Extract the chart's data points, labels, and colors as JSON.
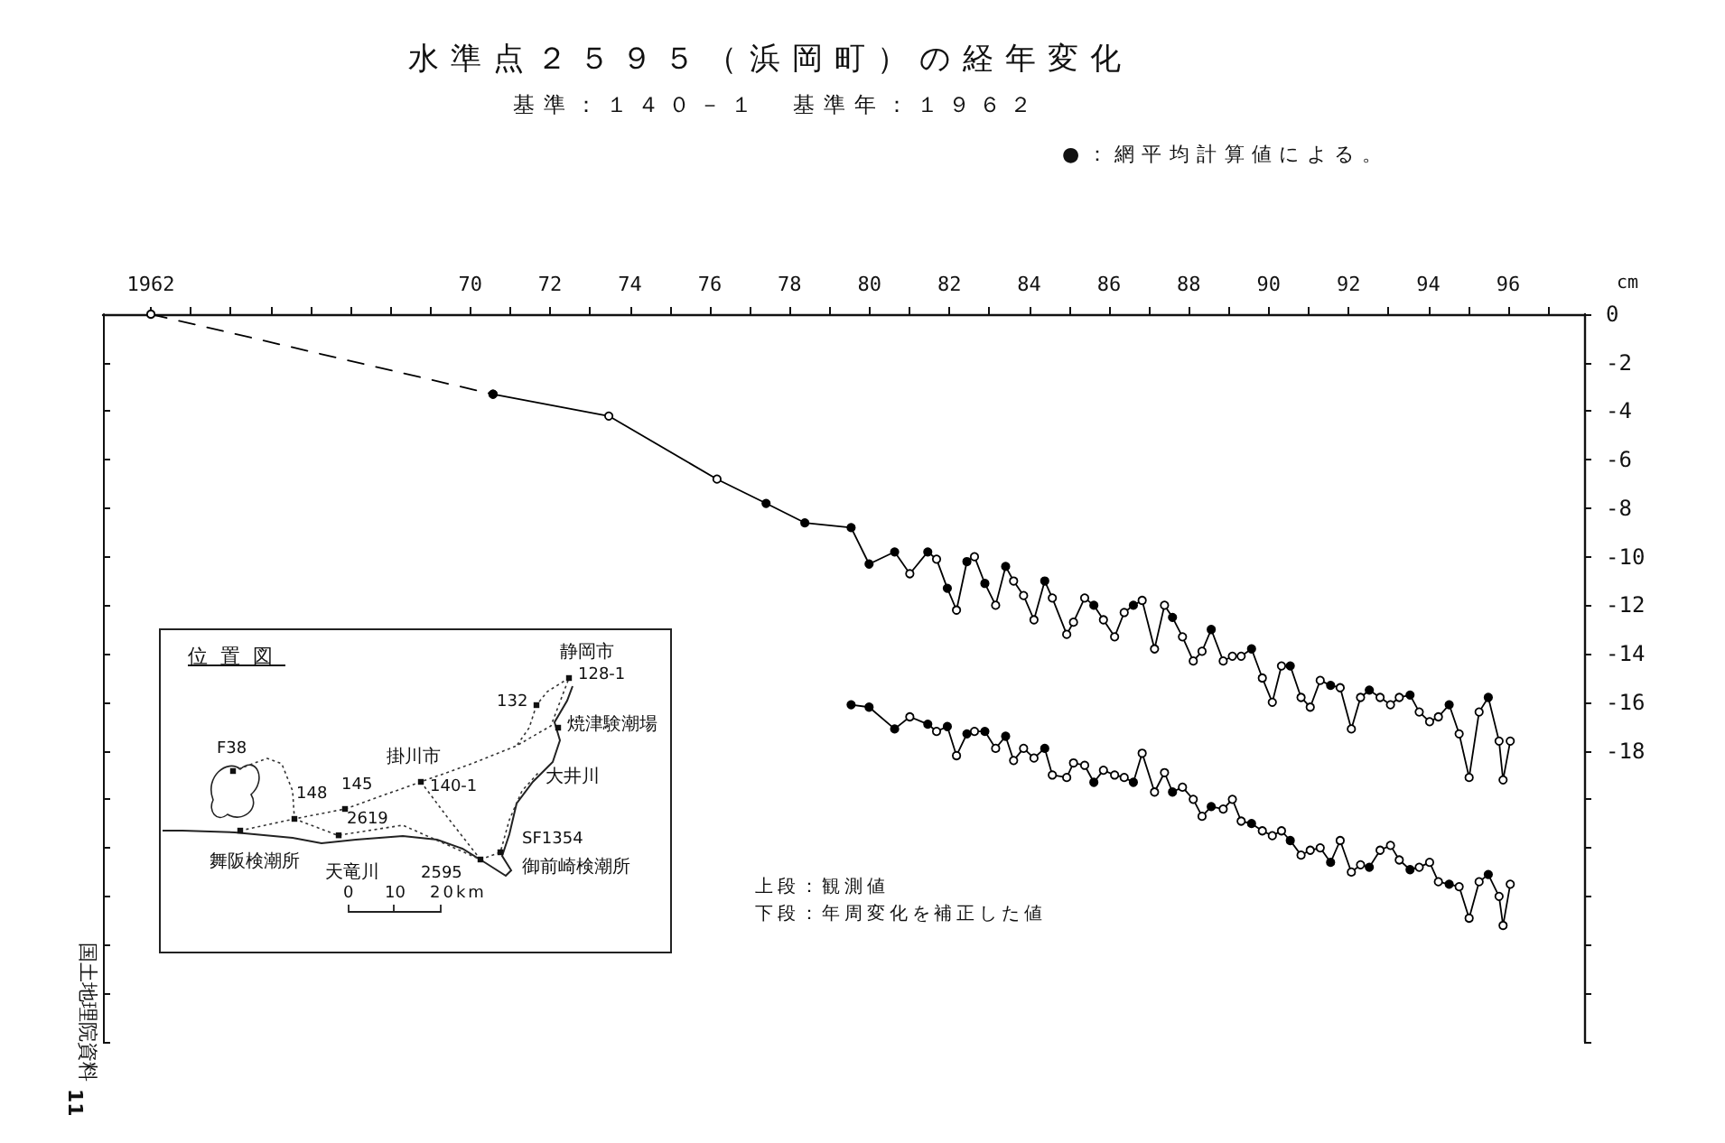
{
  "chart_data": {
    "type": "line",
    "title": "水準点２５９５（浜岡町）の経年変化",
    "subtitle": "基準：１４０－１　基準年：１９６２",
    "ylabel": "cm",
    "xlim": [
      1960.8,
      1997.9
    ],
    "xticks": [
      {
        "value": 1962,
        "label": "1962"
      },
      {
        "value": 1963,
        "label": null
      },
      {
        "value": 1964,
        "label": null
      },
      {
        "value": 1965,
        "label": null
      },
      {
        "value": 1966,
        "label": null
      },
      {
        "value": 1967,
        "label": null
      },
      {
        "value": 1968,
        "label": null
      },
      {
        "value": 1969,
        "label": null
      },
      {
        "value": 1970,
        "label": "70"
      },
      {
        "value": 1971,
        "label": null
      },
      {
        "value": 1972,
        "label": "72"
      },
      {
        "value": 1973,
        "label": null
      },
      {
        "value": 1974,
        "label": "74"
      },
      {
        "value": 1975,
        "label": null
      },
      {
        "value": 1976,
        "label": "76"
      },
      {
        "value": 1977,
        "label": null
      },
      {
        "value": 1978,
        "label": "78"
      },
      {
        "value": 1979,
        "label": null
      },
      {
        "value": 1980,
        "label": "80"
      },
      {
        "value": 1981,
        "label": null
      },
      {
        "value": 1982,
        "label": "82"
      },
      {
        "value": 1983,
        "label": null
      },
      {
        "value": 1984,
        "label": "84"
      },
      {
        "value": 1985,
        "label": null
      },
      {
        "value": 1986,
        "label": "86"
      },
      {
        "value": 1987,
        "label": null
      },
      {
        "value": 1988,
        "label": "88"
      },
      {
        "value": 1989,
        "label": null
      },
      {
        "value": 1990,
        "label": "90"
      },
      {
        "value": 1991,
        "label": null
      },
      {
        "value": 1992,
        "label": "92"
      },
      {
        "value": 1993,
        "label": null
      },
      {
        "value": 1994,
        "label": "94"
      },
      {
        "value": 1995,
        "label": null
      },
      {
        "value": 1996,
        "label": "96"
      },
      {
        "value": 1997,
        "label": null
      }
    ],
    "ylim": [
      -30,
      0
    ],
    "yticks": [
      0,
      -2,
      -4,
      -6,
      -8,
      -10,
      -12,
      -14,
      -16,
      -18,
      {
        "value": -20,
        "label": null
      },
      {
        "value": -22,
        "label": null
      },
      {
        "value": -24,
        "label": null
      },
      {
        "value": -26,
        "label": null
      },
      {
        "value": -28,
        "label": null
      },
      {
        "value": -30,
        "label": null
      }
    ],
    "grid": false,
    "marker": "circle",
    "annotations": [
      "●：網平均計算値による。",
      "上段：観測値",
      "下段：年周変化を補正した値",
      "国土地理院資料",
      "11",
      "位置図",
      "静岡市",
      "128-1",
      "132",
      "焼津験潮場",
      "掛川市",
      "140-1",
      "大井川",
      "F38",
      "148",
      "145",
      "2619",
      "SF1354",
      "舞阪検潮所",
      "天竜川",
      "2595",
      "御前崎検潮所",
      "0",
      "10",
      "20km"
    ],
    "series": [
      {
        "color": "#000000",
        "line_style": "dashed",
        "x": [
          1962,
          1970.57
        ],
        "values": [
          0,
          -3.3
        ],
        "colors": [
          "#ffffff",
          "#000000"
        ]
      },
      {
        "color": "#000000",
        "line_style": "solid",
        "x": [
          1970.57,
          1973.47,
          1976.18,
          1977.41,
          1978.38,
          1979.54,
          1979.99,
          1980.63,
          1981.01,
          1981.46,
          1981.68,
          1981.95,
          1982.18,
          1982.44,
          1982.63,
          1982.89,
          1983.16,
          1983.41,
          1983.61,
          1983.86,
          1984.12,
          1984.39,
          1984.58,
          1984.94,
          1985.11,
          1985.39,
          1985.62,
          1985.86,
          1986.14,
          1986.38,
          1986.61,
          1986.83,
          1987.14,
          1987.39,
          1987.59,
          1987.84,
          1988.11,
          1988.33,
          1988.56,
          1988.86,
          1989.09,
          1989.31,
          1989.57,
          1989.84,
          1990.09,
          1990.32,
          1990.54,
          1990.81,
          1991.04,
          1991.29,
          1991.55,
          1991.79,
          1992.07,
          1992.3,
          1992.52,
          1992.79,
          1993.05,
          1993.27,
          1993.54,
          1993.77,
          1994.03,
          1994.25,
          1994.52,
          1994.77,
          1995.02,
          1995.27,
          1995.5,
          1995.77,
          1995.87,
          1996.05
        ],
        "values": [
          -3.3,
          -4.2,
          -6.8,
          -7.8,
          -8.6,
          -8.8,
          -10.3,
          -9.8,
          -10.7,
          -9.8,
          -10.1,
          -11.3,
          -12.2,
          -10.2,
          -10.0,
          -11.1,
          -12.0,
          -10.4,
          -11.0,
          -11.6,
          -12.6,
          -11.0,
          -11.7,
          -13.2,
          -12.7,
          -11.7,
          -12.0,
          -12.6,
          -13.3,
          -12.3,
          -12.0,
          -11.8,
          -13.8,
          -12.0,
          -12.5,
          -13.3,
          -14.3,
          -13.9,
          -13.0,
          -14.3,
          -14.1,
          -14.1,
          -13.8,
          -15.0,
          -16.0,
          -14.5,
          -14.5,
          -15.8,
          -16.2,
          -15.1,
          -15.3,
          -15.4,
          -17.1,
          -15.8,
          -15.5,
          -15.8,
          -16.1,
          -15.8,
          -15.7,
          -16.4,
          -16.8,
          -16.6,
          -16.1,
          -17.3,
          -19.1,
          -16.4,
          -15.8,
          -17.6,
          -19.2,
          -17.6
        ],
        "colors": [
          "#000000",
          "#ffffff",
          "#ffffff",
          "#000000",
          "#000000",
          "#000000",
          "#000000",
          "#000000",
          "#ffffff",
          "#000000",
          "#ffffff",
          "#000000",
          "#ffffff",
          "#000000",
          "#ffffff",
          "#000000",
          "#ffffff",
          "#000000",
          "#ffffff",
          "#ffffff",
          "#ffffff",
          "#000000",
          "#ffffff",
          "#ffffff",
          "#ffffff",
          "#ffffff",
          "#000000",
          "#ffffff",
          "#ffffff",
          "#ffffff",
          "#000000",
          "#ffffff",
          "#ffffff",
          "#ffffff",
          "#000000",
          "#ffffff",
          "#ffffff",
          "#ffffff",
          "#000000",
          "#ffffff",
          "#ffffff",
          "#ffffff",
          "#000000",
          "#ffffff",
          "#ffffff",
          "#ffffff",
          "#000000",
          "#ffffff",
          "#ffffff",
          "#ffffff",
          "#000000",
          "#ffffff",
          "#ffffff",
          "#ffffff",
          "#000000",
          "#ffffff",
          "#ffffff",
          "#ffffff",
          "#000000",
          "#ffffff",
          "#ffffff",
          "#ffffff",
          "#000000",
          "#ffffff",
          "#ffffff",
          "#ffffff",
          "#000000",
          "#ffffff",
          "#ffffff",
          "#ffffff"
        ]
      },
      {
        "color": "#000000",
        "line_style": "solid",
        "x": [
          1979.54,
          1979.99,
          1980.63,
          1981.01,
          1981.46,
          1981.68,
          1981.95,
          1982.18,
          1982.44,
          1982.63,
          1982.89,
          1983.16,
          1983.41,
          1983.61,
          1983.86,
          1984.12,
          1984.39,
          1984.58,
          1984.94,
          1985.11,
          1985.39,
          1985.62,
          1985.86,
          1986.14,
          1986.38,
          1986.61,
          1986.83,
          1987.14,
          1987.39,
          1987.59,
          1987.84,
          1988.11,
          1988.33,
          1988.56,
          1988.86,
          1989.09,
          1989.31,
          1989.57,
          1989.84,
          1990.09,
          1990.32,
          1990.54,
          1990.81,
          1991.04,
          1991.29,
          1991.55,
          1991.79,
          1992.07,
          1992.3,
          1992.52,
          1992.79,
          1993.05,
          1993.27,
          1993.54,
          1993.77,
          1994.03,
          1994.25,
          1994.52,
          1994.77,
          1995.02,
          1995.27,
          1995.5,
          1995.77,
          1995.87,
          1996.05
        ],
        "values": [
          -16.1,
          -16.2,
          -17.1,
          -16.6,
          -16.9,
          -17.2,
          -17.0,
          -18.2,
          -17.3,
          -17.2,
          -17.2,
          -17.9,
          -17.4,
          -18.4,
          -17.9,
          -18.3,
          -17.9,
          -19.0,
          -19.1,
          -18.5,
          -18.6,
          -19.3,
          -18.8,
          -19.0,
          -19.1,
          -19.3,
          -18.1,
          -19.7,
          -18.9,
          -19.7,
          -19.5,
          -20.0,
          -20.7,
          -20.3,
          -20.4,
          -20.0,
          -20.9,
          -21.0,
          -21.3,
          -21.5,
          -21.3,
          -21.7,
          -22.3,
          -22.1,
          -22.0,
          -22.6,
          -21.7,
          -23.0,
          -22.7,
          -22.8,
          -22.1,
          -21.9,
          -22.5,
          -22.9,
          -22.8,
          -22.6,
          -23.4,
          -23.5,
          -23.6,
          -24.9,
          -23.4,
          -23.1,
          -24.0,
          -25.2,
          -23.5
        ],
        "colors": [
          "#000000",
          "#000000",
          "#000000",
          "#ffffff",
          "#000000",
          "#ffffff",
          "#000000",
          "#ffffff",
          "#000000",
          "#ffffff",
          "#000000",
          "#ffffff",
          "#000000",
          "#ffffff",
          "#ffffff",
          "#ffffff",
          "#000000",
          "#ffffff",
          "#ffffff",
          "#ffffff",
          "#ffffff",
          "#000000",
          "#ffffff",
          "#ffffff",
          "#ffffff",
          "#000000",
          "#ffffff",
          "#ffffff",
          "#ffffff",
          "#000000",
          "#ffffff",
          "#ffffff",
          "#ffffff",
          "#000000",
          "#ffffff",
          "#ffffff",
          "#ffffff",
          "#000000",
          "#ffffff",
          "#ffffff",
          "#ffffff",
          "#000000",
          "#ffffff",
          "#ffffff",
          "#ffffff",
          "#000000",
          "#ffffff",
          "#ffffff",
          "#ffffff",
          "#000000",
          "#ffffff",
          "#ffffff",
          "#ffffff",
          "#000000",
          "#ffffff",
          "#ffffff",
          "#ffffff",
          "#000000",
          "#ffffff",
          "#ffffff",
          "#ffffff",
          "#000000",
          "#ffffff",
          "#ffffff",
          "#ffffff"
        ]
      }
    ]
  }
}
